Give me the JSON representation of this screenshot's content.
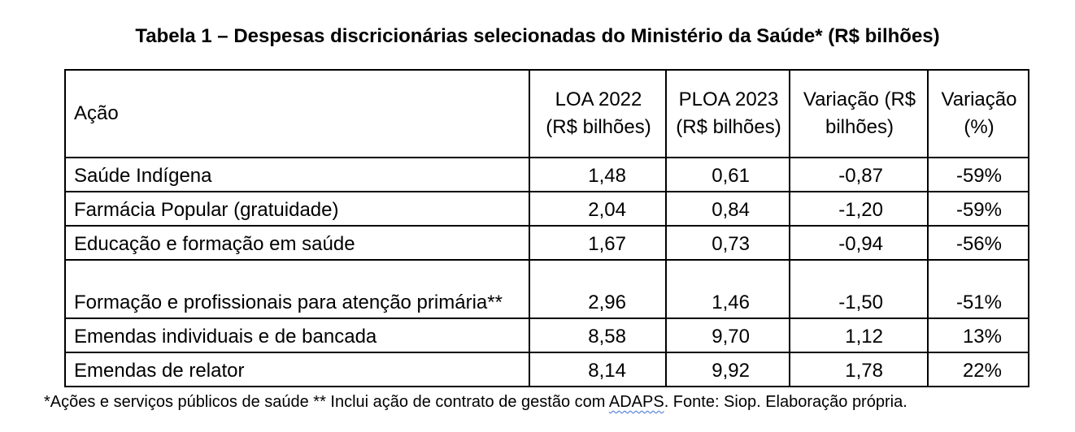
{
  "title": "Tabela 1 – Despesas discricionárias selecionadas do Ministério da Saúde* (R$ bilhões)",
  "table": {
    "headers": [
      "Ação",
      "LOA 2022 (R$ bilhões)",
      "PLOA 2023 (R$ bilhões)",
      "Variação (R$ bilhões)",
      "Variação (%)"
    ],
    "rows": [
      {
        "acao": "Saúde Indígena",
        "loa_2022": "1,48",
        "ploa_2023": "0,61",
        "variacao_rs": "-0,87",
        "variacao_pct": "-59%"
      },
      {
        "acao": "Farmácia Popular (gratuidade)",
        "loa_2022": "2,04",
        "ploa_2023": "0,84",
        "variacao_rs": "-1,20",
        "variacao_pct": "-59%"
      },
      {
        "acao": "Educação e formação em saúde",
        "loa_2022": "1,67",
        "ploa_2023": "0,73",
        "variacao_rs": "-0,94",
        "variacao_pct": "-56%"
      },
      {
        "acao": "Formação e profissionais para atenção primária**",
        "loa_2022": "2,96",
        "ploa_2023": "1,46",
        "variacao_rs": "-1,50",
        "variacao_pct": "-51%"
      },
      {
        "acao": "Emendas individuais e de bancada",
        "loa_2022": "8,58",
        "ploa_2023": "9,70",
        "variacao_rs": "1,12",
        "variacao_pct": "13%"
      },
      {
        "acao": "Emendas de relator",
        "loa_2022": "8,14",
        "ploa_2023": "9,92",
        "variacao_rs": "1,78",
        "variacao_pct": "22%"
      }
    ]
  },
  "footnote": {
    "before": "*Ações e serviços públicos de saúde ** Inclui ação de contrato de gestão com ",
    "flagged_word": "ADAPS",
    "after": ". Fonte: Siop. Elaboração própria.",
    "spellcheck_color": "#3b6fd6"
  }
}
